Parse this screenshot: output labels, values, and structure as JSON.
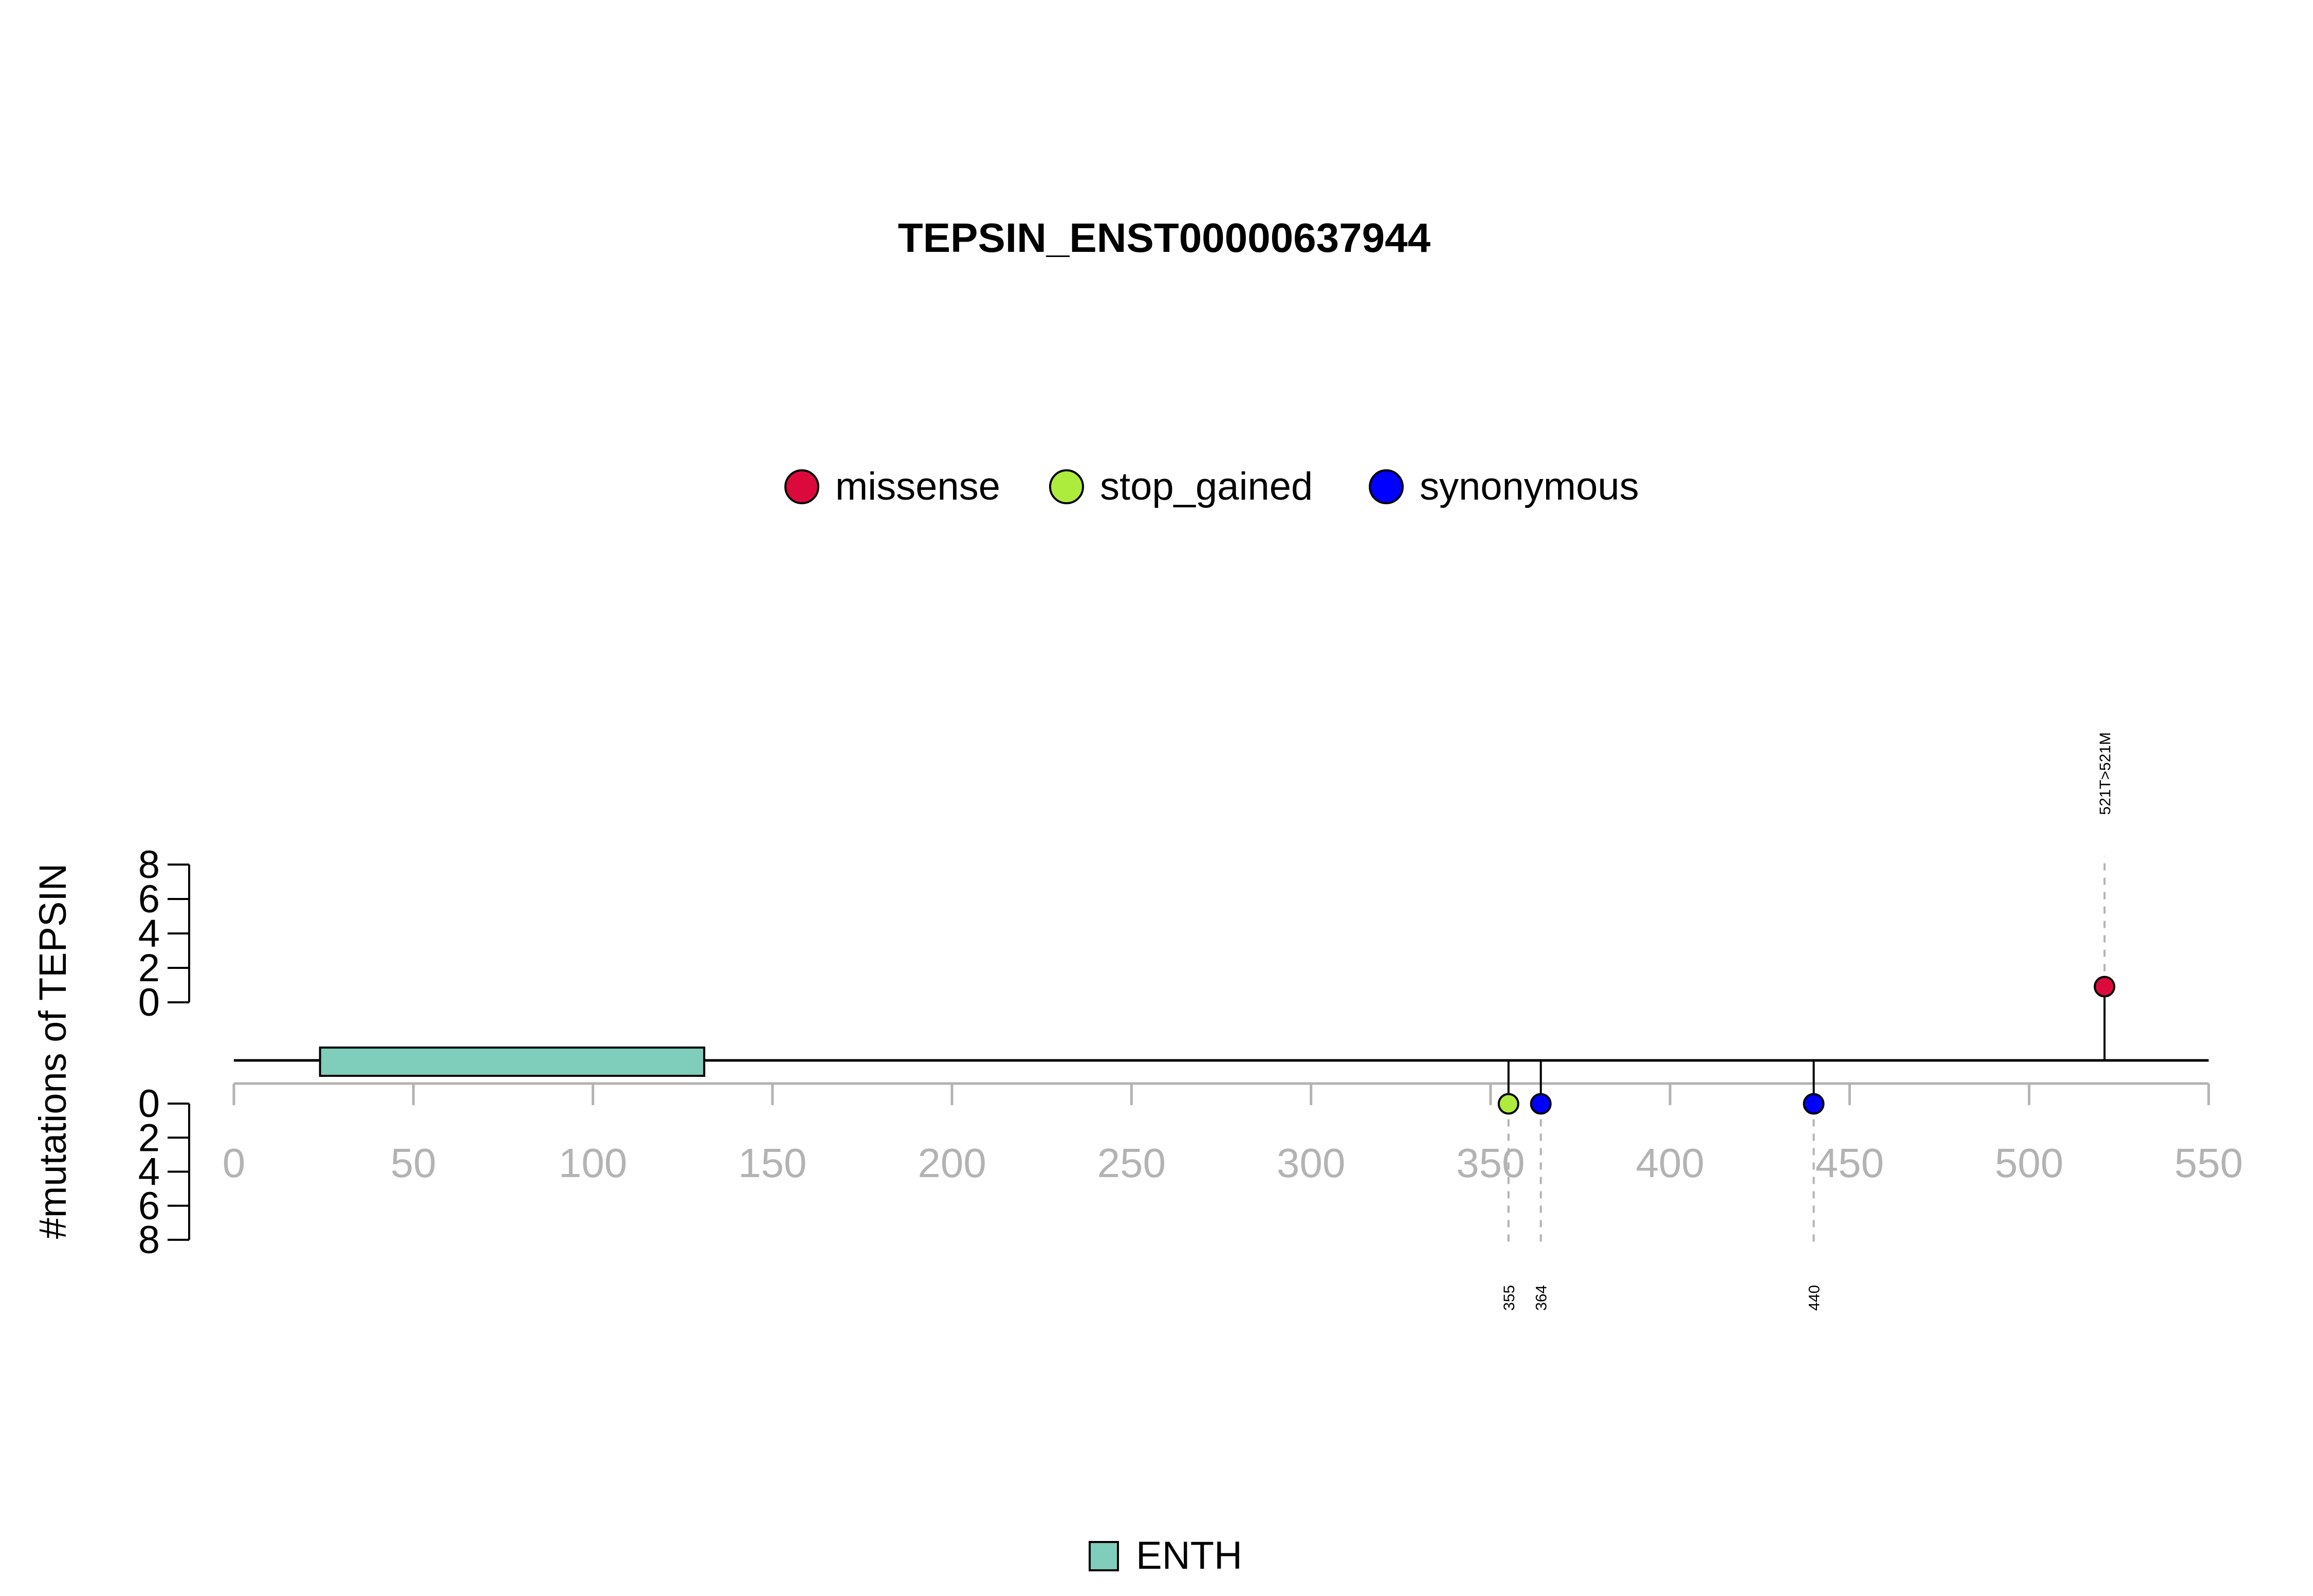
{
  "chart_data": {
    "type": "lollipop",
    "title": "TEPSIN_ENST00000637944",
    "ylabel": "#mutations of TEPSIN",
    "xlim": [
      0,
      550
    ],
    "x_ticks": [
      0,
      50,
      100,
      150,
      200,
      250,
      300,
      350,
      400,
      450,
      500,
      550
    ],
    "y_ticks_upper": [
      0,
      2,
      4,
      6,
      8
    ],
    "y_ticks_lower": [
      0,
      2,
      4,
      6,
      8
    ],
    "ylim": [
      0,
      8
    ],
    "legend": [
      {
        "label": "missense",
        "color": "#DC0A3C"
      },
      {
        "label": "stop_gained",
        "color": "#ADEB3C"
      },
      {
        "label": "synonymous",
        "color": "#0000FF"
      }
    ],
    "mutations": [
      {
        "position": 521,
        "count": 1,
        "type": "missense",
        "side": "upper",
        "label": "521T>521M"
      },
      {
        "position": 355,
        "count": 1,
        "type": "stop_gained",
        "side": "lower",
        "label": "355"
      },
      {
        "position": 364,
        "count": 1,
        "type": "synonymous",
        "side": "lower",
        "label": "364"
      },
      {
        "position": 440,
        "count": 1,
        "type": "synonymous",
        "side": "lower",
        "label": "440"
      }
    ],
    "domains": [
      {
        "name": "ENTH",
        "start": 24,
        "end": 131,
        "color": "#7FCDBB"
      }
    ],
    "domain_legend": [
      {
        "label": "ENTH",
        "color": "#7FCDBB"
      }
    ]
  }
}
